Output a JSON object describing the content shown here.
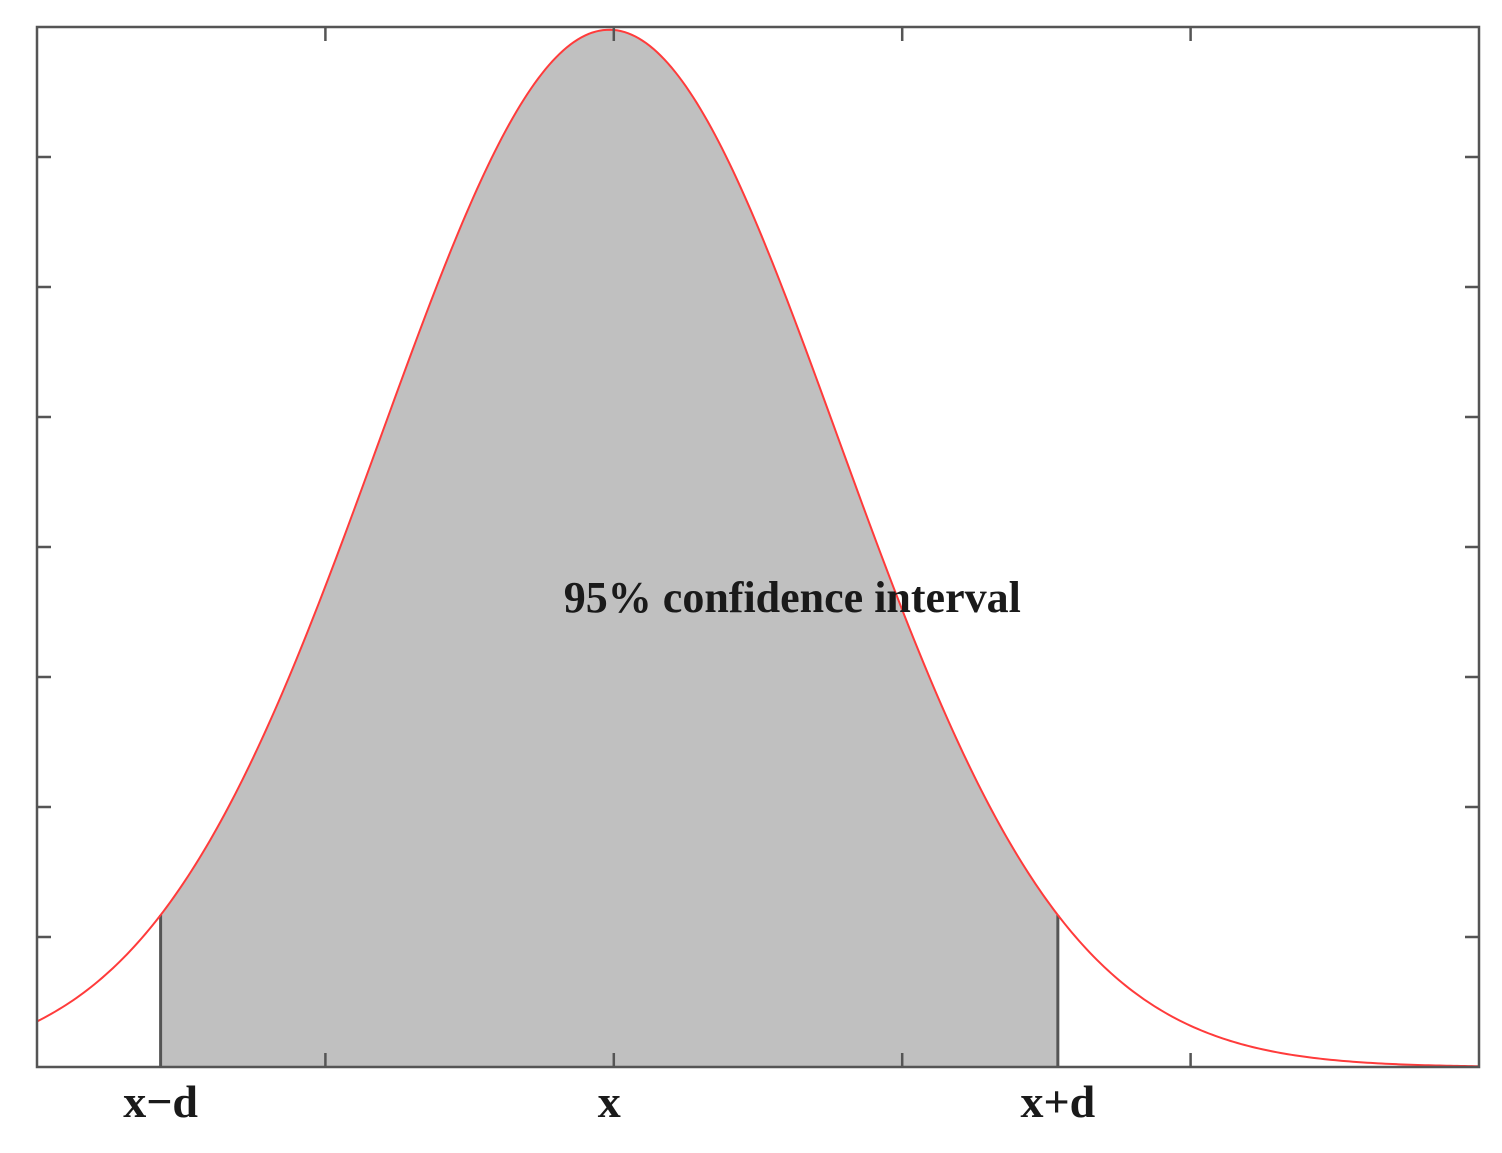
{
  "chart_data": {
    "type": "area",
    "title": "",
    "xlabel": "",
    "ylabel": "",
    "x_tick_labels": [
      {
        "x": -1.96,
        "label": "x−d"
      },
      {
        "x": 0,
        "label": "x"
      },
      {
        "x": 1.96,
        "label": "x+d"
      }
    ],
    "xlim": [
      -2.5,
      3.8
    ],
    "ylim": [
      0,
      0.4
    ],
    "grid": false,
    "legend": "none",
    "curve": {
      "distribution": "normal",
      "mean": 0,
      "sd": 1,
      "x": [
        -2.5,
        -2.25,
        -2.0,
        -1.75,
        -1.5,
        -1.25,
        -1.0,
        -0.75,
        -0.5,
        -0.25,
        0.0,
        0.25,
        0.5,
        0.75,
        1.0,
        1.25,
        1.5,
        1.75,
        2.0,
        2.25,
        2.5,
        2.75,
        3.0,
        3.25,
        3.5,
        3.8
      ],
      "y": [
        0.0175,
        0.0317,
        0.054,
        0.0863,
        0.1295,
        0.1826,
        0.242,
        0.3011,
        0.3521,
        0.3867,
        0.3989,
        0.3867,
        0.3521,
        0.3011,
        0.242,
        0.1826,
        0.1295,
        0.0863,
        0.054,
        0.0317,
        0.0175,
        0.0091,
        0.0044,
        0.002,
        0.0009,
        0.0003
      ]
    },
    "shaded_interval": {
      "from": -1.96,
      "to": 1.96
    },
    "annotation": {
      "text": "95% confidence interval",
      "x": 0.8,
      "y": 0.175
    },
    "colors": {
      "curve": "#ff3b3b",
      "fill": "#c0c0c0",
      "axes": "#555555"
    }
  }
}
